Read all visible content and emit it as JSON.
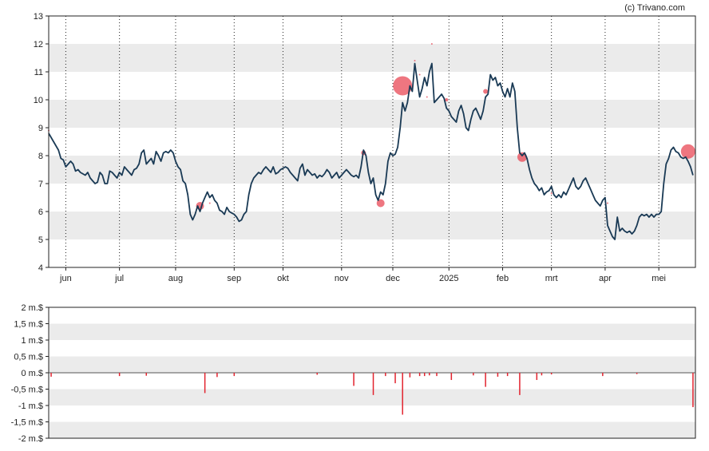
{
  "copyright": "(c) Trivano.com",
  "colors": {
    "line": "#1a3a55",
    "bubble": "#e8414f",
    "bar": "#e2232e",
    "band": "#ebebeb"
  },
  "chart_data": [
    {
      "type": "line",
      "ylim": [
        4,
        13
      ],
      "yticks": [
        "4",
        "5",
        "6",
        "7",
        "8",
        "9",
        "10",
        "11",
        "12",
        "13"
      ],
      "xlim": [
        0,
        265
      ],
      "xticks": [
        {
          "label": "jun",
          "x": 7
        },
        {
          "label": "jul",
          "x": 29
        },
        {
          "label": "aug",
          "x": 52
        },
        {
          "label": "sep",
          "x": 76
        },
        {
          "label": "okt",
          "x": 96
        },
        {
          "label": "nov",
          "x": 120
        },
        {
          "label": "dec",
          "x": 141
        },
        {
          "label": "2025",
          "x": 164
        },
        {
          "label": "feb",
          "x": 186
        },
        {
          "label": "mrt",
          "x": 206
        },
        {
          "label": "apr",
          "x": 228
        },
        {
          "label": "mei",
          "x": 250
        }
      ],
      "grid": true,
      "price": [
        [
          0,
          8.8
        ],
        [
          2,
          8.5
        ],
        [
          4,
          8.2
        ],
        [
          5,
          7.9
        ],
        [
          6,
          7.85
        ],
        [
          7,
          7.6
        ],
        [
          9,
          7.8
        ],
        [
          10,
          7.7
        ],
        [
          11,
          7.45
        ],
        [
          12,
          7.5
        ],
        [
          13,
          7.4
        ],
        [
          15,
          7.3
        ],
        [
          16,
          7.4
        ],
        [
          17,
          7.2
        ],
        [
          18,
          7.1
        ],
        [
          19,
          7.0
        ],
        [
          20,
          7.05
        ],
        [
          21,
          7.4
        ],
        [
          22,
          7.3
        ],
        [
          23,
          7.0
        ],
        [
          24,
          7.0
        ],
        [
          25,
          7.45
        ],
        [
          26,
          7.4
        ],
        [
          27,
          7.3
        ],
        [
          28,
          7.2
        ],
        [
          29,
          7.4
        ],
        [
          30,
          7.3
        ],
        [
          31,
          7.6
        ],
        [
          32,
          7.5
        ],
        [
          33,
          7.4
        ],
        [
          34,
          7.3
        ],
        [
          35,
          7.5
        ],
        [
          36,
          7.55
        ],
        [
          37,
          7.7
        ],
        [
          38,
          8.1
        ],
        [
          39,
          8.2
        ],
        [
          40,
          7.7
        ],
        [
          41,
          7.8
        ],
        [
          42,
          7.9
        ],
        [
          43,
          7.7
        ],
        [
          44,
          8.15
        ],
        [
          45,
          8.0
        ],
        [
          46,
          7.8
        ],
        [
          47,
          8.1
        ],
        [
          48,
          8.15
        ],
        [
          49,
          8.1
        ],
        [
          50,
          8.2
        ],
        [
          51,
          8.1
        ],
        [
          52,
          7.8
        ],
        [
          53,
          7.6
        ],
        [
          54,
          7.5
        ],
        [
          55,
          7.1
        ],
        [
          56,
          7.0
        ],
        [
          57,
          6.6
        ],
        [
          58,
          5.9
        ],
        [
          59,
          5.7
        ],
        [
          60,
          5.9
        ],
        [
          61,
          6.2
        ],
        [
          62,
          6.0
        ],
        [
          63,
          6.3
        ],
        [
          64,
          6.5
        ],
        [
          65,
          6.7
        ],
        [
          66,
          6.5
        ],
        [
          67,
          6.6
        ],
        [
          68,
          6.4
        ],
        [
          69,
          6.3
        ],
        [
          70,
          6.05
        ],
        [
          71,
          6.0
        ],
        [
          72,
          5.9
        ],
        [
          73,
          6.15
        ],
        [
          74,
          6.0
        ],
        [
          75,
          5.95
        ],
        [
          76,
          5.9
        ],
        [
          77,
          5.8
        ],
        [
          78,
          5.65
        ],
        [
          79,
          5.7
        ],
        [
          80,
          5.9
        ],
        [
          81,
          6.0
        ],
        [
          82,
          6.6
        ],
        [
          83,
          7.0
        ],
        [
          84,
          7.2
        ],
        [
          85,
          7.3
        ],
        [
          86,
          7.4
        ],
        [
          87,
          7.35
        ],
        [
          88,
          7.5
        ],
        [
          89,
          7.6
        ],
        [
          90,
          7.5
        ],
        [
          91,
          7.4
        ],
        [
          92,
          7.6
        ],
        [
          93,
          7.35
        ],
        [
          94,
          7.4
        ],
        [
          95,
          7.5
        ],
        [
          96,
          7.55
        ],
        [
          97,
          7.6
        ],
        [
          98,
          7.55
        ],
        [
          99,
          7.4
        ],
        [
          100,
          7.3
        ],
        [
          101,
          7.2
        ],
        [
          102,
          7.1
        ],
        [
          103,
          7.55
        ],
        [
          104,
          7.7
        ],
        [
          105,
          7.3
        ],
        [
          106,
          7.5
        ],
        [
          107,
          7.4
        ],
        [
          108,
          7.3
        ],
        [
          109,
          7.35
        ],
        [
          110,
          7.2
        ],
        [
          111,
          7.3
        ],
        [
          112,
          7.25
        ],
        [
          113,
          7.35
        ],
        [
          114,
          7.5
        ],
        [
          115,
          7.4
        ],
        [
          116,
          7.2
        ],
        [
          117,
          7.3
        ],
        [
          118,
          7.4
        ],
        [
          119,
          7.2
        ],
        [
          120,
          7.3
        ],
        [
          121,
          7.4
        ],
        [
          122,
          7.5
        ],
        [
          123,
          7.4
        ],
        [
          124,
          7.3
        ],
        [
          125,
          7.25
        ],
        [
          126,
          7.3
        ],
        [
          127,
          7.2
        ],
        [
          128,
          7.6
        ],
        [
          129,
          8.2
        ],
        [
          130,
          8.0
        ],
        [
          131,
          7.4
        ],
        [
          132,
          7.0
        ],
        [
          133,
          7.2
        ],
        [
          134,
          6.6
        ],
        [
          135,
          6.4
        ],
        [
          136,
          6.7
        ],
        [
          137,
          6.6
        ],
        [
          138,
          7.0
        ],
        [
          139,
          7.8
        ],
        [
          140,
          8.1
        ],
        [
          141,
          8.0
        ],
        [
          142,
          8.05
        ],
        [
          143,
          8.3
        ],
        [
          144,
          9.0
        ],
        [
          145,
          9.9
        ],
        [
          146,
          9.6
        ],
        [
          147,
          9.9
        ],
        [
          148,
          10.5
        ],
        [
          149,
          10.3
        ],
        [
          150,
          11.3
        ],
        [
          151,
          10.7
        ],
        [
          152,
          10.1
        ],
        [
          153,
          10.4
        ],
        [
          154,
          10.8
        ],
        [
          155,
          10.5
        ],
        [
          156,
          11.0
        ],
        [
          157,
          11.3
        ],
        [
          158,
          9.9
        ],
        [
          159,
          10.0
        ],
        [
          160,
          10.1
        ],
        [
          161,
          10.2
        ],
        [
          162,
          10.05
        ],
        [
          163,
          9.7
        ],
        [
          164,
          9.6
        ],
        [
          165,
          9.4
        ],
        [
          166,
          9.3
        ],
        [
          167,
          9.2
        ],
        [
          168,
          9.6
        ],
        [
          169,
          9.8
        ],
        [
          170,
          9.5
        ],
        [
          171,
          9.0
        ],
        [
          172,
          8.9
        ],
        [
          173,
          9.3
        ],
        [
          174,
          9.6
        ],
        [
          175,
          9.7
        ],
        [
          176,
          9.5
        ],
        [
          177,
          9.3
        ],
        [
          178,
          9.6
        ],
        [
          179,
          10.1
        ],
        [
          180,
          10.2
        ],
        [
          181,
          10.9
        ],
        [
          182,
          10.7
        ],
        [
          183,
          10.8
        ],
        [
          184,
          10.5
        ],
        [
          185,
          10.6
        ],
        [
          186,
          10.3
        ],
        [
          187,
          10.1
        ],
        [
          188,
          10.4
        ],
        [
          189,
          10.1
        ],
        [
          190,
          10.6
        ],
        [
          191,
          10.3
        ],
        [
          192,
          9.0
        ],
        [
          193,
          8.1
        ],
        [
          194,
          8.0
        ],
        [
          195,
          8.1
        ],
        [
          196,
          7.9
        ],
        [
          197,
          7.5
        ],
        [
          198,
          7.2
        ],
        [
          199,
          7.0
        ],
        [
          200,
          6.9
        ],
        [
          201,
          6.75
        ],
        [
          202,
          6.85
        ],
        [
          203,
          6.6
        ],
        [
          204,
          6.7
        ],
        [
          205,
          6.75
        ],
        [
          206,
          6.9
        ],
        [
          207,
          6.6
        ],
        [
          208,
          6.5
        ],
        [
          209,
          6.6
        ],
        [
          210,
          6.5
        ],
        [
          211,
          6.7
        ],
        [
          212,
          6.6
        ],
        [
          213,
          6.8
        ],
        [
          214,
          7.0
        ],
        [
          215,
          7.2
        ],
        [
          216,
          6.9
        ],
        [
          217,
          6.8
        ],
        [
          218,
          6.9
        ],
        [
          219,
          7.1
        ],
        [
          220,
          7.2
        ],
        [
          221,
          7.0
        ],
        [
          222,
          6.8
        ],
        [
          223,
          6.6
        ],
        [
          224,
          6.4
        ],
        [
          225,
          6.3
        ],
        [
          226,
          6.2
        ],
        [
          227,
          6.4
        ],
        [
          228,
          6.5
        ],
        [
          229,
          5.5
        ],
        [
          230,
          5.3
        ],
        [
          231,
          5.1
        ],
        [
          232,
          5.0
        ],
        [
          233,
          5.8
        ],
        [
          234,
          5.3
        ],
        [
          235,
          5.4
        ],
        [
          236,
          5.3
        ],
        [
          237,
          5.25
        ],
        [
          238,
          5.3
        ],
        [
          239,
          5.2
        ],
        [
          240,
          5.3
        ],
        [
          241,
          5.5
        ],
        [
          242,
          5.8
        ],
        [
          243,
          5.9
        ],
        [
          244,
          5.85
        ],
        [
          245,
          5.9
        ],
        [
          246,
          5.8
        ],
        [
          247,
          5.9
        ],
        [
          248,
          5.8
        ],
        [
          249,
          5.9
        ],
        [
          250,
          5.9
        ],
        [
          251,
          6.0
        ],
        [
          252,
          7.0
        ],
        [
          253,
          7.7
        ],
        [
          254,
          7.9
        ],
        [
          255,
          8.2
        ],
        [
          256,
          8.3
        ],
        [
          257,
          8.15
        ],
        [
          258,
          8.1
        ],
        [
          259,
          7.95
        ],
        [
          260,
          7.9
        ],
        [
          261,
          7.95
        ],
        [
          262,
          7.8
        ],
        [
          263,
          7.6
        ],
        [
          264,
          7.3
        ]
      ],
      "bubbles": [
        [
          0,
          8.9,
          1
        ],
        [
          62,
          6.2,
          5
        ],
        [
          66,
          6.3,
          1
        ],
        [
          129,
          8.1,
          3
        ],
        [
          136,
          6.3,
          5
        ],
        [
          145,
          10.5,
          12
        ],
        [
          150,
          11.4,
          1
        ],
        [
          152,
          10.9,
          1
        ],
        [
          155,
          10.1,
          1
        ],
        [
          157,
          12.0,
          1
        ],
        [
          163,
          10.0,
          2
        ],
        [
          179,
          10.3,
          3
        ],
        [
          194,
          7.95,
          6
        ],
        [
          206,
          6.65,
          1
        ],
        [
          229,
          6.3,
          1
        ],
        [
          262,
          8.15,
          9
        ]
      ]
    },
    {
      "type": "bar",
      "ylim": [
        -2,
        2
      ],
      "yticks": [
        "-2 m.$",
        "-1,5 m.$",
        "-1 m.$",
        "-0,5 m.$",
        "0 m.$",
        "0,5 m.$",
        "1 m.$",
        "1,5 m.$",
        "2 m.$"
      ],
      "values": [
        [
          1,
          -0.12
        ],
        [
          29,
          -0.1
        ],
        [
          40,
          -0.09
        ],
        [
          64,
          -0.62
        ],
        [
          69,
          -0.13
        ],
        [
          76,
          -0.1
        ],
        [
          110,
          -0.06
        ],
        [
          125,
          -0.4
        ],
        [
          133,
          -0.68
        ],
        [
          138,
          -0.1
        ],
        [
          142,
          -0.32
        ],
        [
          145,
          -1.28
        ],
        [
          148,
          -0.14
        ],
        [
          152,
          -0.1
        ],
        [
          154,
          -0.1
        ],
        [
          156,
          -0.08
        ],
        [
          159,
          -0.1
        ],
        [
          165,
          -0.22
        ],
        [
          174,
          -0.08
        ],
        [
          179,
          -0.43
        ],
        [
          184,
          -0.12
        ],
        [
          188,
          -0.1
        ],
        [
          193,
          -0.68
        ],
        [
          200,
          -0.22
        ],
        [
          202,
          -0.08
        ],
        [
          206,
          -0.05
        ],
        [
          227,
          -0.1
        ],
        [
          241,
          -0.04
        ],
        [
          264,
          -1.05
        ]
      ]
    }
  ]
}
